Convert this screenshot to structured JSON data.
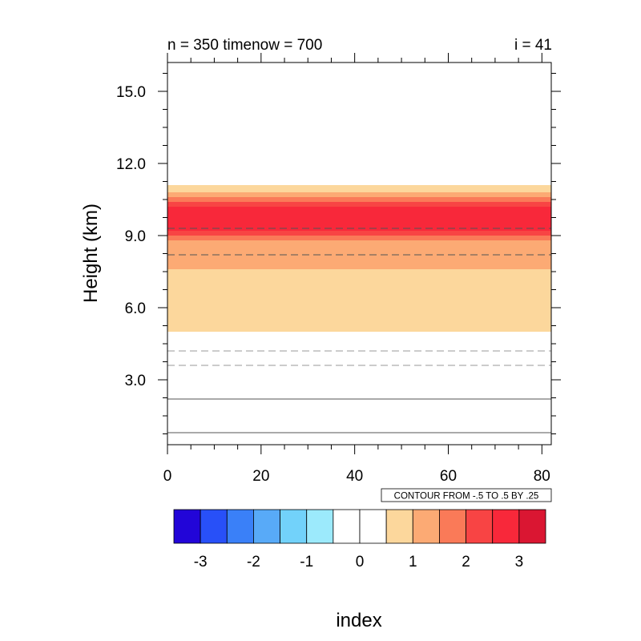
{
  "chart_data": {
    "type": "heatmap",
    "title_left": "n = 350 timenow = 700",
    "title_right": "i = 41",
    "ylabel": "Height (km)",
    "xlabel": "index",
    "xlim": [
      0,
      82
    ],
    "ylim": [
      0.3,
      16.2
    ],
    "x_ticks": [
      0,
      20,
      40,
      60,
      80
    ],
    "x_tick_labels": [
      "0",
      "20",
      "40",
      "60",
      "80"
    ],
    "y_ticks": [
      3.0,
      6.0,
      9.0,
      12.0,
      15.0
    ],
    "y_tick_labels": [
      "3.0",
      "6.0",
      "9.0",
      "12.0",
      "15.0"
    ],
    "y_minor_step": 0.75,
    "x_minor_step": 5,
    "bands": [
      {
        "y0": 5.0,
        "y1": 7.6,
        "color": "#fcd79c"
      },
      {
        "y0": 7.6,
        "y1": 8.8,
        "color": "#fcaa74"
      },
      {
        "y0": 8.8,
        "y1": 9.0,
        "color": "#fa7a58"
      },
      {
        "y0": 9.0,
        "y1": 9.2,
        "color": "#f84444"
      },
      {
        "y0": 9.2,
        "y1": 10.2,
        "color": "#f8283a"
      },
      {
        "y0": 10.2,
        "y1": 10.4,
        "color": "#f84444"
      },
      {
        "y0": 10.4,
        "y1": 10.6,
        "color": "#fa7a58"
      },
      {
        "y0": 10.6,
        "y1": 10.8,
        "color": "#fcaa74"
      },
      {
        "y0": 10.8,
        "y1": 11.1,
        "color": "#fcd79c"
      }
    ],
    "contour_lines": [
      {
        "y": 0.8,
        "style": "solid",
        "color": "#555555"
      },
      {
        "y": 2.2,
        "style": "solid",
        "color": "#555555"
      },
      {
        "y": 3.6,
        "style": "dashed",
        "color": "#999999"
      },
      {
        "y": 4.2,
        "style": "dashed",
        "color": "#999999"
      },
      {
        "y": 8.2,
        "style": "dashed",
        "color": "#555555"
      },
      {
        "y": 9.3,
        "style": "dashed",
        "color": "#555555"
      }
    ],
    "contour_info": "CONTOUR FROM -.5 TO .5 BY .25",
    "colorbar": {
      "colors": [
        "#2205d8",
        "#2850f8",
        "#3a80f8",
        "#58aaf8",
        "#72d2fa",
        "#9ceafc",
        "#ffffff",
        "#ffffff",
        "#fcd79c",
        "#fcaa74",
        "#fa7a58",
        "#f84444",
        "#f8283a",
        "#da1632"
      ],
      "labels": [
        "-3",
        "-2",
        "-1",
        "0",
        "1",
        "2",
        "3"
      ]
    }
  }
}
